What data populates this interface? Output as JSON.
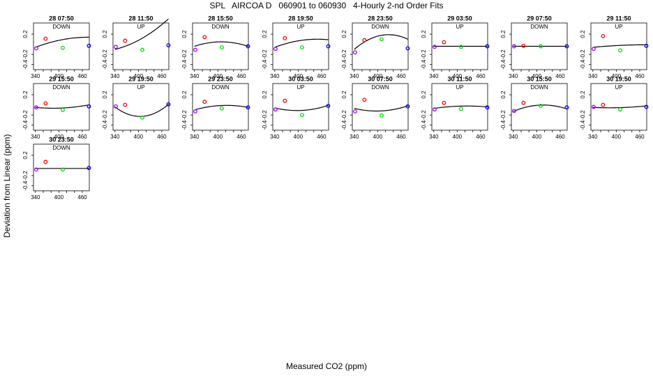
{
  "title": "SPL   AIRCOA D   060901 to 060930   4-Hourly 2-nd Order Fits",
  "xlabel": "Measured CO2 (ppm)",
  "ylabel": "Deviation from Linear (ppm)",
  "colors": {
    "red": "#ff0000",
    "green": "#00dd00",
    "blue": "#0000ff",
    "purple": "#aa00ff",
    "curve": "#000000"
  },
  "chart_data": [
    {
      "type": "scatter",
      "title": "28 07:50",
      "subtitle": "DOWN",
      "xlim": [
        335,
        478
      ],
      "ylim": [
        -0.5,
        0.42
      ],
      "xticks": [
        340,
        400,
        460
      ],
      "yticks": [
        0.2,
        -0.2,
        -0.4
      ],
      "points": [
        {
          "x": 342,
          "y": -0.08,
          "color": "purple"
        },
        {
          "x": 366,
          "y": 0.11,
          "color": "red"
        },
        {
          "x": 410,
          "y": -0.07,
          "color": "green"
        },
        {
          "x": 477,
          "y": -0.03,
          "color": "blue"
        }
      ],
      "fit": [
        -0.06,
        0.4,
        -0.2
      ]
    },
    {
      "type": "scatter",
      "title": "28 11:50",
      "subtitle": "UP",
      "xlim": [
        335,
        478
      ],
      "ylim": [
        -0.5,
        0.42
      ],
      "xticks": [
        340,
        400,
        460
      ],
      "yticks": [
        0.2,
        -0.2,
        -0.4
      ],
      "points": [
        {
          "x": 342,
          "y": -0.05,
          "color": "purple"
        },
        {
          "x": 366,
          "y": 0.07,
          "color": "red"
        },
        {
          "x": 410,
          "y": -0.11,
          "color": "green"
        },
        {
          "x": 477,
          "y": -0.02,
          "color": "blue"
        }
      ],
      "fit": [
        -0.1,
        0.25,
        0.35
      ]
    },
    {
      "type": "scatter",
      "title": "28 15:50",
      "subtitle": "DOWN",
      "xlim": [
        335,
        478
      ],
      "ylim": [
        -0.5,
        0.42
      ],
      "xticks": [
        340,
        400,
        460
      ],
      "yticks": [
        0.2,
        -0.2,
        -0.4
      ],
      "points": [
        {
          "x": 342,
          "y": -0.11,
          "color": "purple"
        },
        {
          "x": 366,
          "y": 0.14,
          "color": "red"
        },
        {
          "x": 410,
          "y": -0.06,
          "color": "green"
        },
        {
          "x": 477,
          "y": -0.04,
          "color": "blue"
        }
      ],
      "fit": [
        -0.04,
        0.35,
        -0.35
      ]
    },
    {
      "type": "scatter",
      "title": "28 19:50",
      "subtitle": "UP",
      "xlim": [
        335,
        478
      ],
      "ylim": [
        -0.5,
        0.42
      ],
      "xticks": [
        340,
        400,
        460
      ],
      "yticks": [
        0.2,
        -0.2,
        -0.4
      ],
      "points": [
        {
          "x": 342,
          "y": -0.09,
          "color": "purple"
        },
        {
          "x": 366,
          "y": 0.12,
          "color": "red"
        },
        {
          "x": 410,
          "y": -0.06,
          "color": "green"
        },
        {
          "x": 477,
          "y": -0.04,
          "color": "blue"
        }
      ],
      "fit": [
        -0.06,
        0.4,
        -0.25
      ]
    },
    {
      "type": "scatter",
      "title": "28 23:50",
      "subtitle": "DOWN",
      "xlim": [
        335,
        478
      ],
      "ylim": [
        -0.5,
        0.42
      ],
      "xticks": [
        340,
        400,
        460
      ],
      "yticks": [
        0.2,
        -0.2,
        -0.4
      ],
      "points": [
        {
          "x": 342,
          "y": -0.16,
          "color": "purple"
        },
        {
          "x": 366,
          "y": 0.08,
          "color": "red"
        },
        {
          "x": 410,
          "y": 0.1,
          "color": "green"
        },
        {
          "x": 477,
          "y": -0.08,
          "color": "blue"
        }
      ],
      "fit": [
        -0.1,
        0.9,
        -0.7
      ]
    },
    {
      "type": "scatter",
      "title": "29 03:50",
      "subtitle": "UP",
      "xlim": [
        335,
        478
      ],
      "ylim": [
        -0.5,
        0.42
      ],
      "xticks": [
        340,
        400,
        460
      ],
      "yticks": [
        0.2,
        -0.2,
        -0.4
      ],
      "points": [
        {
          "x": 342,
          "y": -0.05,
          "color": "purple"
        },
        {
          "x": 366,
          "y": 0.04,
          "color": "red"
        },
        {
          "x": 410,
          "y": -0.05,
          "color": "green"
        },
        {
          "x": 477,
          "y": -0.04,
          "color": "blue"
        }
      ],
      "fit": [
        -0.04,
        0.0,
        0.0
      ]
    },
    {
      "type": "scatter",
      "title": "29 07:50",
      "subtitle": "DOWN",
      "xlim": [
        335,
        478
      ],
      "ylim": [
        -0.5,
        0.42
      ],
      "xticks": [
        340,
        400,
        460
      ],
      "yticks": [
        0.2,
        -0.2,
        -0.4
      ],
      "points": [
        {
          "x": 342,
          "y": -0.04,
          "color": "purple"
        },
        {
          "x": 366,
          "y": -0.03,
          "color": "red"
        },
        {
          "x": 410,
          "y": -0.04,
          "color": "green"
        },
        {
          "x": 477,
          "y": -0.04,
          "color": "blue"
        }
      ],
      "fit": [
        -0.04,
        0.0,
        0.0
      ]
    },
    {
      "type": "scatter",
      "title": "29 11:50",
      "subtitle": "UP",
      "xlim": [
        335,
        478
      ],
      "ylim": [
        -0.5,
        0.42
      ],
      "xticks": [
        340,
        400,
        460
      ],
      "yticks": [
        0.2,
        -0.2,
        -0.4
      ],
      "points": [
        {
          "x": 342,
          "y": -0.09,
          "color": "purple"
        },
        {
          "x": 366,
          "y": 0.16,
          "color": "red"
        },
        {
          "x": 410,
          "y": -0.12,
          "color": "green"
        },
        {
          "x": 477,
          "y": -0.03,
          "color": "blue"
        }
      ],
      "fit": [
        -0.06,
        0.1,
        -0.05
      ]
    },
    {
      "type": "scatter",
      "title": "29 15:50",
      "subtitle": "DOWN",
      "xlim": [
        335,
        478
      ],
      "ylim": [
        -0.5,
        0.42
      ],
      "xticks": [
        340,
        400,
        460
      ],
      "yticks": [
        0.2,
        -0.2,
        -0.4
      ],
      "points": [
        {
          "x": 342,
          "y": -0.05,
          "color": "purple"
        },
        {
          "x": 366,
          "y": 0.03,
          "color": "red"
        },
        {
          "x": 410,
          "y": -0.1,
          "color": "green"
        },
        {
          "x": 477,
          "y": -0.03,
          "color": "blue"
        }
      ],
      "fit": [
        -0.05,
        -0.1,
        0.15
      ]
    },
    {
      "type": "scatter",
      "title": "29 19:50",
      "subtitle": "UP",
      "xlim": [
        335,
        478
      ],
      "ylim": [
        -0.5,
        0.42
      ],
      "xticks": [
        340,
        400,
        460
      ],
      "yticks": [
        0.2,
        -0.2,
        -0.4
      ],
      "points": [
        {
          "x": 342,
          "y": -0.03,
          "color": "purple"
        },
        {
          "x": 366,
          "y": 0.0,
          "color": "red"
        },
        {
          "x": 410,
          "y": -0.25,
          "color": "green"
        },
        {
          "x": 477,
          "y": 0.01,
          "color": "blue"
        }
      ],
      "fit": [
        -0.04,
        -0.8,
        0.85
      ]
    },
    {
      "type": "scatter",
      "title": "29 23:50",
      "subtitle": "DOWN",
      "xlim": [
        335,
        478
      ],
      "ylim": [
        -0.5,
        0.42
      ],
      "xticks": [
        340,
        400,
        460
      ],
      "yticks": [
        0.2,
        -0.2,
        -0.4
      ],
      "points": [
        {
          "x": 342,
          "y": -0.13,
          "color": "purple"
        },
        {
          "x": 366,
          "y": 0.06,
          "color": "red"
        },
        {
          "x": 410,
          "y": -0.07,
          "color": "green"
        },
        {
          "x": 477,
          "y": -0.05,
          "color": "blue"
        }
      ],
      "fit": [
        -0.1,
        0.3,
        -0.25
      ]
    },
    {
      "type": "scatter",
      "title": "30 03:50",
      "subtitle": "UP",
      "xlim": [
        335,
        478
      ],
      "ylim": [
        -0.5,
        0.42
      ],
      "xticks": [
        340,
        400,
        460
      ],
      "yticks": [
        0.2,
        -0.2,
        -0.4
      ],
      "points": [
        {
          "x": 342,
          "y": -0.09,
          "color": "purple"
        },
        {
          "x": 366,
          "y": 0.08,
          "color": "red"
        },
        {
          "x": 410,
          "y": -0.2,
          "color": "green"
        },
        {
          "x": 477,
          "y": -0.02,
          "color": "blue"
        }
      ],
      "fit": [
        -0.06,
        -0.25,
        0.3
      ]
    },
    {
      "type": "scatter",
      "title": "30 07:50",
      "subtitle": "DOWN",
      "xlim": [
        335,
        478
      ],
      "ylim": [
        -0.5,
        0.42
      ],
      "xticks": [
        340,
        400,
        460
      ],
      "yticks": [
        0.2,
        -0.2,
        -0.4
      ],
      "points": [
        {
          "x": 342,
          "y": -0.13,
          "color": "purple"
        },
        {
          "x": 366,
          "y": 0.1,
          "color": "red"
        },
        {
          "x": 410,
          "y": -0.21,
          "color": "green"
        },
        {
          "x": 477,
          "y": -0.03,
          "color": "blue"
        }
      ],
      "fit": [
        -0.07,
        -0.25,
        0.3
      ]
    },
    {
      "type": "scatter",
      "title": "30 11:50",
      "subtitle": "UP",
      "xlim": [
        335,
        478
      ],
      "ylim": [
        -0.5,
        0.42
      ],
      "xticks": [
        340,
        400,
        460
      ],
      "yticks": [
        0.2,
        -0.2,
        -0.4
      ],
      "points": [
        {
          "x": 342,
          "y": -0.09,
          "color": "purple"
        },
        {
          "x": 366,
          "y": 0.04,
          "color": "red"
        },
        {
          "x": 410,
          "y": -0.08,
          "color": "green"
        },
        {
          "x": 477,
          "y": -0.05,
          "color": "blue"
        }
      ],
      "fit": [
        -0.07,
        0.15,
        -0.12
      ]
    },
    {
      "type": "scatter",
      "title": "30 15:50",
      "subtitle": "DOWN",
      "xlim": [
        335,
        478
      ],
      "ylim": [
        -0.5,
        0.42
      ],
      "xticks": [
        340,
        400,
        460
      ],
      "yticks": [
        0.2,
        -0.2,
        -0.4
      ],
      "points": [
        {
          "x": 342,
          "y": -0.12,
          "color": "purple"
        },
        {
          "x": 366,
          "y": 0.04,
          "color": "red"
        },
        {
          "x": 410,
          "y": -0.02,
          "color": "green"
        },
        {
          "x": 477,
          "y": -0.05,
          "color": "blue"
        }
      ],
      "fit": [
        -0.13,
        0.45,
        -0.4
      ]
    },
    {
      "type": "scatter",
      "title": "30 19:50",
      "subtitle": "UP",
      "xlim": [
        335,
        478
      ],
      "ylim": [
        -0.5,
        0.42
      ],
      "xticks": [
        340,
        400,
        460
      ],
      "yticks": [
        0.2,
        -0.2,
        -0.4
      ],
      "points": [
        {
          "x": 342,
          "y": -0.04,
          "color": "purple"
        },
        {
          "x": 366,
          "y": 0.0,
          "color": "red"
        },
        {
          "x": 410,
          "y": -0.09,
          "color": "green"
        },
        {
          "x": 477,
          "y": -0.04,
          "color": "blue"
        }
      ],
      "fit": [
        -0.05,
        -0.05,
        0.08
      ]
    },
    {
      "type": "scatter",
      "title": "30 23:50",
      "subtitle": "DOWN",
      "xlim": [
        335,
        478
      ],
      "ylim": [
        -0.5,
        0.42
      ],
      "xticks": [
        340,
        400,
        460
      ],
      "yticks": [
        0.2,
        -0.2,
        -0.4
      ],
      "points": [
        {
          "x": 342,
          "y": -0.08,
          "color": "purple"
        },
        {
          "x": 366,
          "y": 0.07,
          "color": "red"
        },
        {
          "x": 410,
          "y": -0.08,
          "color": "green"
        },
        {
          "x": 477,
          "y": -0.05,
          "color": "blue"
        }
      ],
      "fit": [
        -0.06,
        0.0,
        0.0
      ]
    }
  ]
}
